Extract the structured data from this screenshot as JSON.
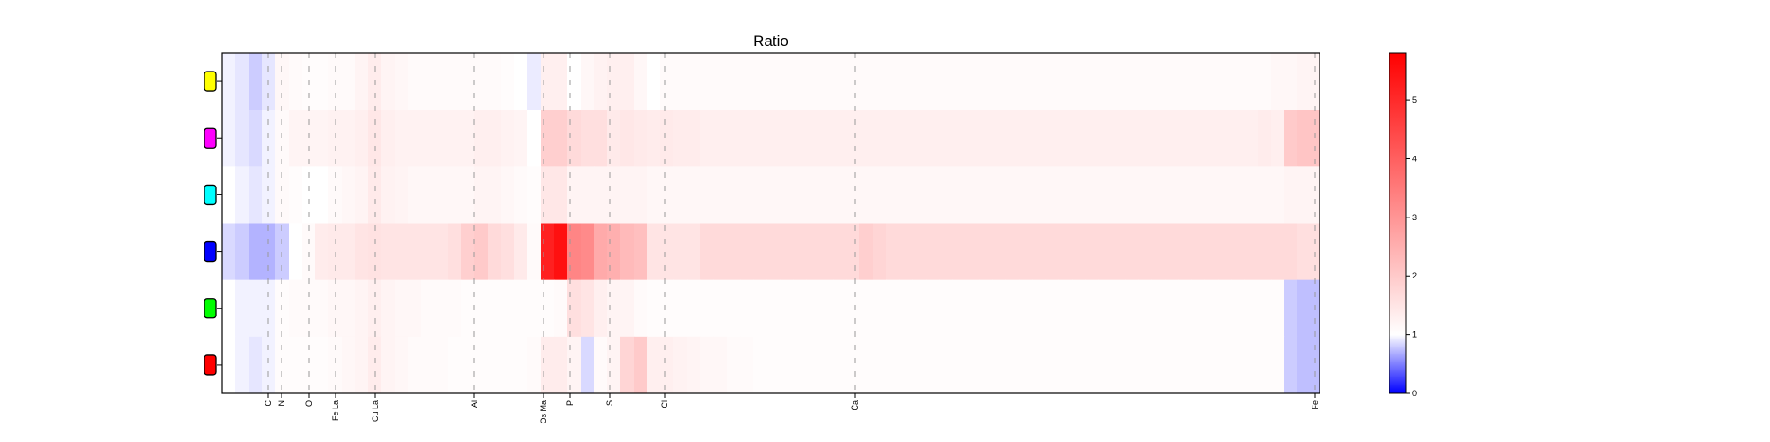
{
  "chart_data": {
    "type": "heatmap",
    "title": "Ratio",
    "rows": [
      {
        "marker_color": "#ffff00"
      },
      {
        "marker_color": "#ff00ff"
      },
      {
        "marker_color": "#00ffff"
      },
      {
        "marker_color": "#0000ff"
      },
      {
        "marker_color": "#00ff00"
      },
      {
        "marker_color": "#ff0000"
      }
    ],
    "x_ticks": [
      {
        "label": "C",
        "channel": 52
      },
      {
        "label": "N",
        "channel": 67
      },
      {
        "label": "O",
        "channel": 98
      },
      {
        "label": "Fe La",
        "channel": 128
      },
      {
        "label": "Cu La",
        "channel": 173
      },
      {
        "label": "Al",
        "channel": 285
      },
      {
        "label": "Os Ma",
        "channel": 363
      },
      {
        "label": "P",
        "channel": 393
      },
      {
        "label": "S",
        "channel": 438
      },
      {
        "label": "Cl",
        "channel": 500
      },
      {
        "label": "Ca",
        "channel": 715
      },
      {
        "label": "Fe",
        "channel": 1235
      }
    ],
    "x_range": [
      0,
      1240
    ],
    "colorbar": {
      "ticks": [
        0,
        1,
        2,
        3,
        4,
        5
      ],
      "range": [
        0,
        5.8
      ],
      "low_color": "#0000ff",
      "mid_color": "#ffffff",
      "high_color": "#ff0000",
      "mid_value": 1
    },
    "segment_edges": [
      0,
      15,
      30,
      45,
      60,
      75,
      90,
      105,
      120,
      135,
      150,
      165,
      180,
      195,
      210,
      225,
      240,
      255,
      270,
      285,
      300,
      315,
      330,
      345,
      360,
      375,
      390,
      405,
      420,
      435,
      450,
      465,
      480,
      495,
      510,
      525,
      540,
      555,
      570,
      585,
      600,
      615,
      630,
      645,
      660,
      675,
      690,
      705,
      720,
      735,
      750,
      765,
      780,
      795,
      810,
      825,
      840,
      855,
      870,
      885,
      900,
      915,
      930,
      945,
      960,
      975,
      990,
      1005,
      1020,
      1035,
      1050,
      1065,
      1080,
      1095,
      1110,
      1125,
      1140,
      1155,
      1170,
      1185,
      1200,
      1215,
      1240
    ],
    "values": [
      [
        0.95,
        0.9,
        0.8,
        0.9,
        1.15,
        1.1,
        1.05,
        1.05,
        1.1,
        1.1,
        1.2,
        1.35,
        1.2,
        1.15,
        1.1,
        1.1,
        1.1,
        1.1,
        1.1,
        1.1,
        1.1,
        1.05,
        1.0,
        0.92,
        1.3,
        1.3,
        1.0,
        1.15,
        1.25,
        1.3,
        1.3,
        1.15,
        1.0,
        1.1,
        1.1,
        1.1,
        1.1,
        1.1,
        1.1,
        1.1,
        1.1,
        1.1,
        1.1,
        1.1,
        1.1,
        1.1,
        1.1,
        1.1,
        1.1,
        1.1,
        1.1,
        1.1,
        1.1,
        1.1,
        1.1,
        1.1,
        1.1,
        1.1,
        1.1,
        1.1,
        1.1,
        1.1,
        1.1,
        1.1,
        1.1,
        1.1,
        1.1,
        1.1,
        1.1,
        1.1,
        1.1,
        1.1,
        1.1,
        1.1,
        1.1,
        1.1,
        1.1,
        1.1,
        1.1,
        1.15,
        1.15,
        1.2
      ],
      [
        0.95,
        0.9,
        0.85,
        0.95,
        1.1,
        1.2,
        1.2,
        1.2,
        1.25,
        1.25,
        1.3,
        1.45,
        1.3,
        1.25,
        1.25,
        1.25,
        1.25,
        1.25,
        1.25,
        1.3,
        1.3,
        1.25,
        1.2,
        1.0,
        1.9,
        1.9,
        1.7,
        1.6,
        1.6,
        1.4,
        1.45,
        1.4,
        1.35,
        1.4,
        1.35,
        1.35,
        1.3,
        1.3,
        1.3,
        1.3,
        1.3,
        1.3,
        1.3,
        1.3,
        1.3,
        1.3,
        1.3,
        1.3,
        1.3,
        1.3,
        1.3,
        1.3,
        1.3,
        1.3,
        1.3,
        1.3,
        1.3,
        1.3,
        1.3,
        1.3,
        1.3,
        1.3,
        1.3,
        1.3,
        1.3,
        1.3,
        1.3,
        1.3,
        1.3,
        1.3,
        1.3,
        1.3,
        1.3,
        1.3,
        1.3,
        1.3,
        1.3,
        1.3,
        1.35,
        1.3,
        2.0,
        2.1
      ],
      [
        1.0,
        0.95,
        0.9,
        0.95,
        1.1,
        1.05,
        1.0,
        1.0,
        1.1,
        1.15,
        1.2,
        1.4,
        1.25,
        1.2,
        1.15,
        1.15,
        1.15,
        1.15,
        1.15,
        1.2,
        1.2,
        1.15,
        1.1,
        1.05,
        1.45,
        1.45,
        1.2,
        1.2,
        1.2,
        1.2,
        1.2,
        1.2,
        1.15,
        1.15,
        1.15,
        1.15,
        1.15,
        1.15,
        1.15,
        1.15,
        1.15,
        1.15,
        1.15,
        1.15,
        1.15,
        1.15,
        1.15,
        1.15,
        1.15,
        1.15,
        1.15,
        1.15,
        1.15,
        1.15,
        1.15,
        1.15,
        1.15,
        1.15,
        1.15,
        1.15,
        1.15,
        1.15,
        1.15,
        1.15,
        1.15,
        1.15,
        1.15,
        1.15,
        1.15,
        1.15,
        1.15,
        1.15,
        1.15,
        1.15,
        1.15,
        1.15,
        1.15,
        1.15,
        1.15,
        1.15,
        1.2,
        1.2
      ],
      [
        0.85,
        0.8,
        0.7,
        0.7,
        0.8,
        1.0,
        1.1,
        1.35,
        1.4,
        1.4,
        1.5,
        1.55,
        1.5,
        1.5,
        1.5,
        1.5,
        1.5,
        1.6,
        1.9,
        2.0,
        1.7,
        1.6,
        1.4,
        1.1,
        5.2,
        5.5,
        3.3,
        3.2,
        2.6,
        2.5,
        2.3,
        2.2,
        1.5,
        1.5,
        1.5,
        1.5,
        1.7,
        1.7,
        1.7,
        1.7,
        1.7,
        1.7,
        1.7,
        1.7,
        1.7,
        1.7,
        1.7,
        1.7,
        1.9,
        1.8,
        1.7,
        1.7,
        1.7,
        1.7,
        1.7,
        1.7,
        1.7,
        1.7,
        1.7,
        1.7,
        1.7,
        1.7,
        1.7,
        1.7,
        1.7,
        1.7,
        1.7,
        1.7,
        1.7,
        1.7,
        1.7,
        1.7,
        1.7,
        1.7,
        1.7,
        1.7,
        1.7,
        1.7,
        1.7,
        1.7,
        1.7,
        1.6
      ],
      [
        1.0,
        0.95,
        0.95,
        0.95,
        1.05,
        1.1,
        1.1,
        1.1,
        1.15,
        1.15,
        1.2,
        1.3,
        1.2,
        1.15,
        1.15,
        1.1,
        1.1,
        1.1,
        1.05,
        1.05,
        1.05,
        1.05,
        1.05,
        1.05,
        1.05,
        1.1,
        1.6,
        1.5,
        1.3,
        1.2,
        1.2,
        1.1,
        1.05,
        1.05,
        1.05,
        1.05,
        1.05,
        1.05,
        1.05,
        1.05,
        1.05,
        1.05,
        1.05,
        1.05,
        1.05,
        1.05,
        1.05,
        1.05,
        1.05,
        1.05,
        1.05,
        1.05,
        1.05,
        1.05,
        1.05,
        1.05,
        1.05,
        1.05,
        1.05,
        1.05,
        1.05,
        1.05,
        1.05,
        1.05,
        1.05,
        1.05,
        1.05,
        1.05,
        1.05,
        1.05,
        1.05,
        1.05,
        1.05,
        1.05,
        1.05,
        1.05,
        1.05,
        1.05,
        1.05,
        1.05,
        0.8,
        0.75
      ],
      [
        1.0,
        0.95,
        0.9,
        0.95,
        1.05,
        1.05,
        1.05,
        1.05,
        1.1,
        1.15,
        1.2,
        1.35,
        1.2,
        1.15,
        1.1,
        1.1,
        1.1,
        1.05,
        1.05,
        1.05,
        1.05,
        1.05,
        1.05,
        1.1,
        1.35,
        1.35,
        1.2,
        0.85,
        1.1,
        1.2,
        1.8,
        2.0,
        1.3,
        1.3,
        1.25,
        1.2,
        1.15,
        1.15,
        1.1,
        1.1,
        1.05,
        1.05,
        1.05,
        1.05,
        1.05,
        1.05,
        1.05,
        1.05,
        1.05,
        1.05,
        1.05,
        1.05,
        1.05,
        1.05,
        1.05,
        1.05,
        1.05,
        1.05,
        1.05,
        1.05,
        1.05,
        1.05,
        1.05,
        1.05,
        1.05,
        1.05,
        1.05,
        1.05,
        1.05,
        1.05,
        1.05,
        1.05,
        1.05,
        1.05,
        1.05,
        1.05,
        1.05,
        1.05,
        1.05,
        1.05,
        0.8,
        0.75
      ]
    ]
  }
}
